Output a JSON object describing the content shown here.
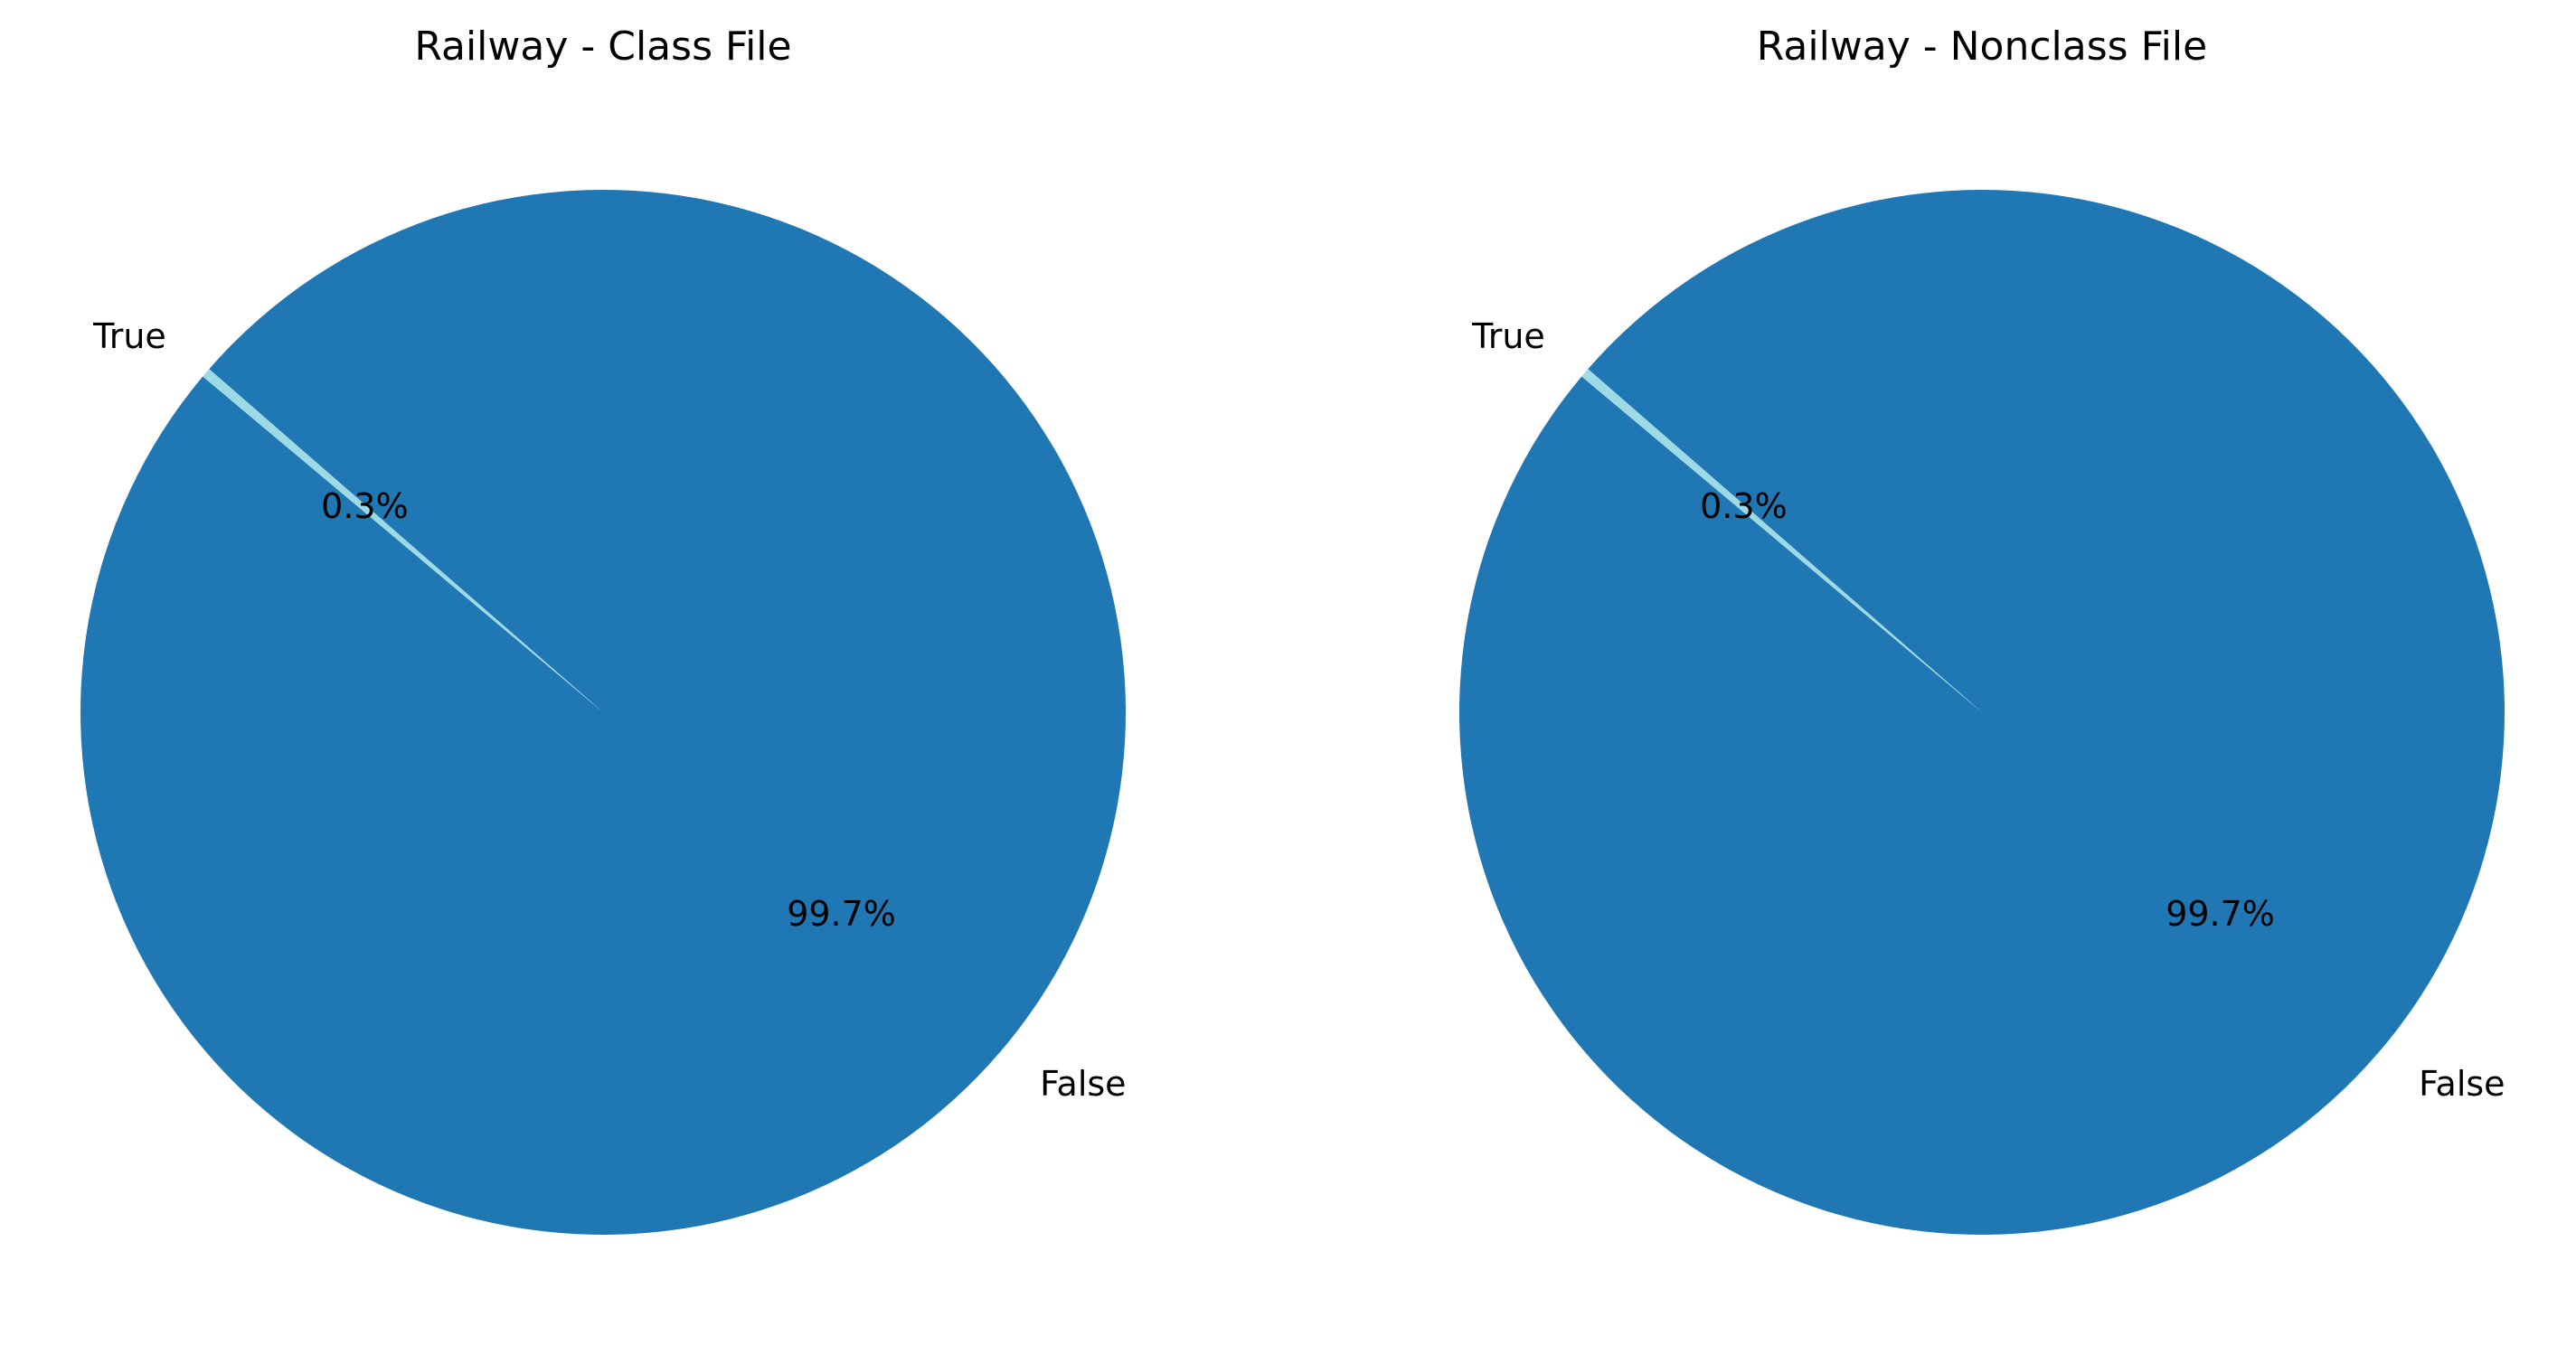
{
  "chart_data": [
    {
      "type": "pie",
      "title": "Railway - Class File",
      "slices": [
        {
          "label": "False",
          "value": 99.7,
          "pct_label": "99.7%",
          "color": "#1f77b4"
        },
        {
          "label": "True",
          "value": 0.3,
          "pct_label": "0.3%",
          "color": "#9edae5"
        }
      ]
    },
    {
      "type": "pie",
      "title": "Railway - Nonclass File",
      "slices": [
        {
          "label": "False",
          "value": 99.7,
          "pct_label": "99.7%",
          "color": "#1f77b4"
        },
        {
          "label": "True",
          "value": 0.3,
          "pct_label": "0.3%",
          "color": "#9edae5"
        }
      ]
    }
  ]
}
